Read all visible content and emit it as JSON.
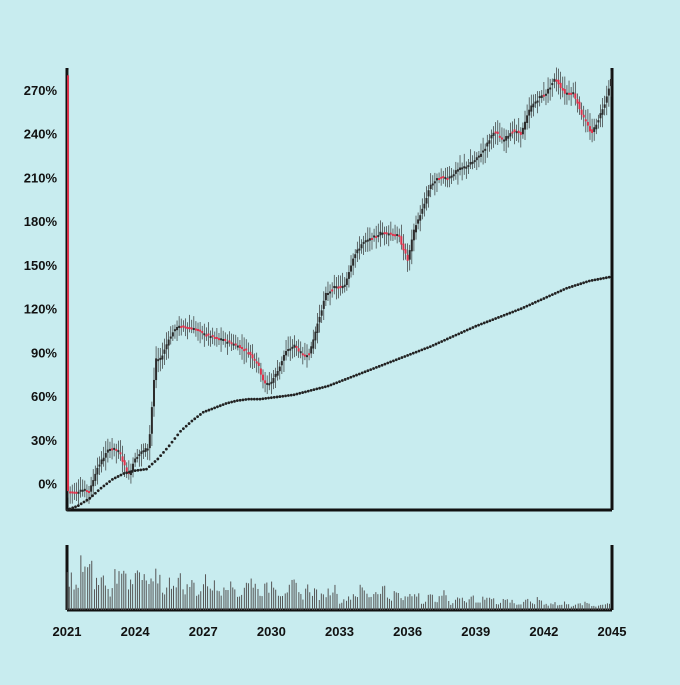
{
  "colors": {
    "background": "#c8ecef",
    "up": "#2b2b2b",
    "down": "#e0314a",
    "moving_average": "#222222",
    "axis": "#111111",
    "volume": "#555555"
  },
  "chart_data": {
    "type": "line",
    "subtype": "candlestick-with-moving-average-and-volume",
    "title": "",
    "xlabel": "",
    "ylabel": "",
    "xlim": [
      2021.0,
      2045.0
    ],
    "ylim": [
      -18,
      285
    ],
    "y_ticks": [
      0,
      30,
      60,
      90,
      120,
      150,
      180,
      210,
      240,
      270
    ],
    "y_tick_labels": [
      "0%",
      "30%",
      "60%",
      "90%",
      "120%",
      "150%",
      "180%",
      "210%",
      "240%",
      "270%"
    ],
    "x_ticks": [
      2021,
      2024,
      2027,
      2030,
      2033,
      2036,
      2039,
      2042,
      2045
    ],
    "x_tick_labels": [
      "2021",
      "2024",
      "2027",
      "2030",
      "2033",
      "2036",
      "2039",
      "2042",
      "2045"
    ],
    "grid": false,
    "legend": "none",
    "price_series": {
      "x": [
        2021.0,
        2021.3,
        2021.6,
        2022.0,
        2022.3,
        2022.6,
        2022.9,
        2023.3,
        2023.7,
        2024.0,
        2024.3,
        2024.6,
        2024.9,
        2025.1,
        2025.5,
        2025.8,
        2026.1,
        2026.5,
        2027.0,
        2027.5,
        2028.0,
        2028.5,
        2029.0,
        2029.4,
        2029.7,
        2030.0,
        2030.3,
        2030.6,
        2031.0,
        2031.4,
        2031.7,
        2032.0,
        2032.4,
        2032.8,
        2033.2,
        2033.6,
        2034.0,
        2034.4,
        2034.8,
        2035.2,
        2035.6,
        2036.0,
        2036.3,
        2036.7,
        2037.0,
        2037.4,
        2037.8,
        2038.2,
        2038.6,
        2039.0,
        2039.4,
        2039.8,
        2040.2,
        2040.6,
        2041.0,
        2041.4,
        2041.8,
        2042.1,
        2042.5,
        2042.9,
        2043.3,
        2043.7,
        2044.1,
        2044.4,
        2044.7,
        2045.0
      ],
      "y": [
        -5,
        -6,
        -4,
        -5,
        10,
        18,
        25,
        22,
        5,
        18,
        22,
        25,
        85,
        85,
        100,
        107,
        108,
        107,
        103,
        100,
        98,
        95,
        90,
        82,
        68,
        70,
        78,
        90,
        95,
        88,
        90,
        108,
        130,
        135,
        135,
        155,
        165,
        168,
        172,
        172,
        170,
        153,
        175,
        190,
        205,
        210,
        210,
        215,
        218,
        222,
        230,
        242,
        235,
        242,
        240,
        258,
        265,
        268,
        278,
        268,
        268,
        252,
        240,
        250,
        262,
        280
      ]
    },
    "moving_average": {
      "x": [
        2021.0,
        2021.5,
        2022.0,
        2022.5,
        2023.0,
        2023.5,
        2024.0,
        2024.5,
        2025.0,
        2025.5,
        2026.0,
        2026.5,
        2027.0,
        2027.5,
        2028.0,
        2028.5,
        2029.0,
        2029.5,
        2030.0,
        2030.5,
        2031.0,
        2031.5,
        2032.0,
        2032.5,
        2033.0,
        2034.0,
        2035.0,
        2036.0,
        2037.0,
        2038.0,
        2039.0,
        2040.0,
        2041.0,
        2042.0,
        2043.0,
        2044.0,
        2045.0
      ],
      "y": [
        -18,
        -15,
        -10,
        -3,
        3,
        7,
        9,
        10,
        17,
        26,
        36,
        43,
        49,
        52,
        55,
        57,
        58,
        58,
        59,
        60,
        61,
        63,
        65,
        67,
        70,
        76,
        82,
        88,
        94,
        101,
        108,
        114,
        120,
        127,
        134,
        139,
        142
      ]
    },
    "volume": {
      "ylim": [
        0,
        70
      ],
      "note": "relative volume bars, no scale printed",
      "x": [
        2021.1,
        2021.4,
        2021.7,
        2022.0,
        2022.3,
        2022.6,
        2022.9,
        2023.2,
        2023.5,
        2023.8,
        2024.1,
        2024.4,
        2024.7,
        2025.0,
        2025.3,
        2025.6,
        2025.9,
        2026.2,
        2026.5,
        2026.8,
        2027.1,
        2027.4,
        2027.7,
        2028.0,
        2028.3,
        2028.6,
        2028.9,
        2029.2,
        2029.5,
        2029.8,
        2030.1,
        2030.4,
        2030.7,
        2031.0,
        2031.3,
        2031.6,
        2031.9,
        2032.2,
        2032.5,
        2032.8,
        2033.1,
        2033.4,
        2033.7,
        2034.0,
        2034.3,
        2034.6,
        2034.9,
        2035.2,
        2035.5,
        2035.8,
        2036.1,
        2036.4,
        2036.7,
        2037.0,
        2037.3,
        2037.6,
        2037.9,
        2038.2,
        2038.5,
        2038.8,
        2039.1,
        2039.4,
        2039.7,
        2040.0,
        2040.3,
        2040.6,
        2040.9,
        2041.2,
        2041.5,
        2041.8,
        2042.1,
        2042.4,
        2042.7,
        2043.0,
        2043.3,
        2043.6,
        2043.9,
        2044.2,
        2044.5,
        2044.8
      ],
      "values": [
        45,
        30,
        62,
        55,
        38,
        42,
        26,
        50,
        65,
        33,
        48,
        40,
        35,
        45,
        28,
        38,
        42,
        30,
        36,
        25,
        40,
        34,
        28,
        38,
        31,
        22,
        35,
        40,
        26,
        30,
        38,
        24,
        28,
        33,
        20,
        30,
        26,
        18,
        25,
        30,
        12,
        18,
        22,
        28,
        20,
        25,
        30,
        18,
        22,
        15,
        20,
        24,
        12,
        18,
        15,
        22,
        10,
        16,
        14,
        20,
        12,
        15,
        18,
        10,
        14,
        12,
        8,
        12,
        10,
        14,
        8,
        10,
        7,
        10,
        6,
        8,
        9,
        6,
        7,
        10
      ]
    }
  }
}
